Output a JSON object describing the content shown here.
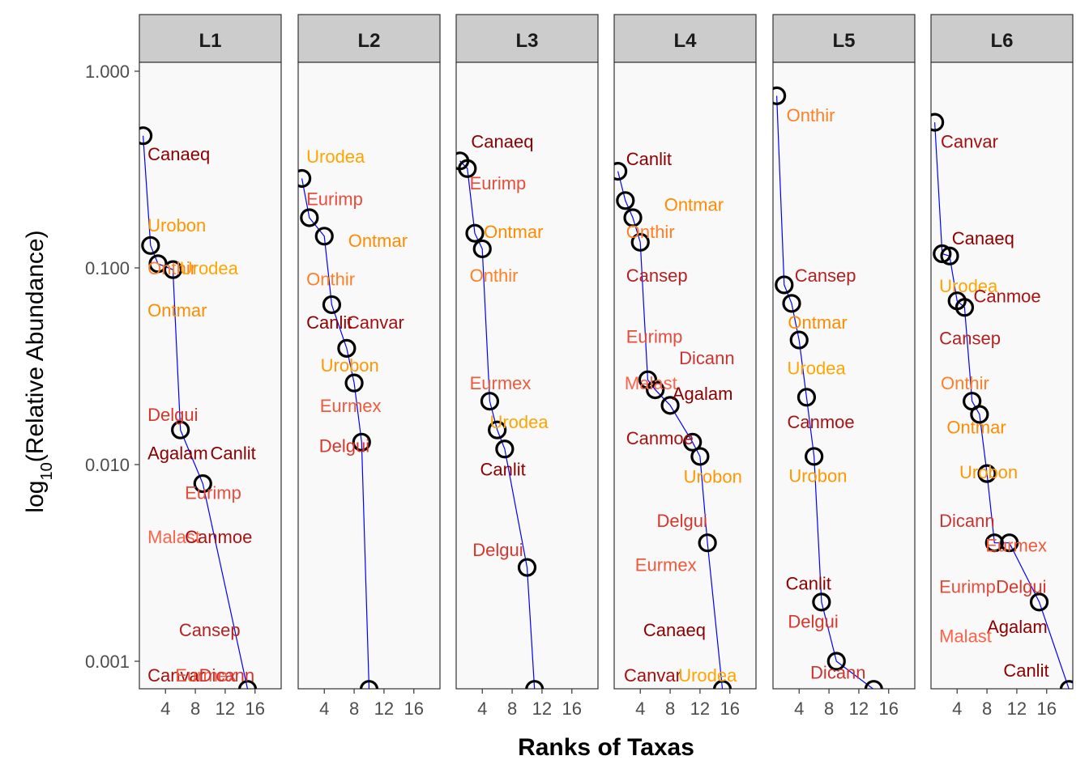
{
  "chart_data": {
    "type": "scatter",
    "xlabel": "Ranks of Taxas",
    "ylabel_prefix": "log",
    "ylabel_subscript": "10",
    "ylabel_suffix": "(Relative Abundance)",
    "y_scale": "log10",
    "ylim": [
      0.00075,
      1.6
    ],
    "xlim": [
      0.5,
      19.5
    ],
    "x_ticks": [
      4,
      8,
      12,
      16
    ],
    "y_ticks": [
      {
        "value": 1,
        "label": "1.000"
      },
      {
        "value": 0.1,
        "label": "0.100"
      },
      {
        "value": 0.01,
        "label": "0.010"
      },
      {
        "value": 0.001,
        "label": "0.001"
      }
    ],
    "colors": {
      "Canaeq": "#8B0000",
      "Canlit": "#8B0000",
      "Canvar": "#A40F0F",
      "Canmoe": "#A81212",
      "Agalam": "#8B0000",
      "Cansep": "#B22222",
      "Dicann": "#CC3333",
      "Delgui": "#D9362B",
      "Eurimp": "#E74C3C",
      "Eurmex": "#F05A3C",
      "Malast": "#FF6347",
      "Onthir": "#FF7F24",
      "Ontmar": "#FF8C00",
      "Urobon": "#FF9800",
      "Urodea": "#FFA500"
    },
    "panels": [
      {
        "label": "L1",
        "points": [
          [
            1,
            0.47
          ],
          [
            2,
            0.13
          ],
          [
            3,
            0.105
          ],
          [
            5,
            0.098
          ],
          [
            6,
            0.015
          ],
          [
            9,
            0.008
          ],
          [
            15,
            0.00072
          ]
        ],
        "labels": [
          {
            "taxon": "Canaeq",
            "x": 1.6,
            "y": 0.38
          },
          {
            "taxon": "Urobon",
            "x": 1.6,
            "y": 0.165
          },
          {
            "taxon": "Onthir",
            "x": 1.6,
            "y": 0.1
          },
          {
            "taxon": "Urodea",
            "x": 5.9,
            "y": 0.1
          },
          {
            "taxon": "Ontmar",
            "x": 1.6,
            "y": 0.061
          },
          {
            "taxon": "Delgui",
            "x": 1.6,
            "y": 0.018
          },
          {
            "taxon": "Agalam",
            "x": 1.6,
            "y": 0.0115
          },
          {
            "taxon": "Canlit",
            "x": 10,
            "y": 0.0115
          },
          {
            "taxon": "Eurimp",
            "x": 6.6,
            "y": 0.0072
          },
          {
            "taxon": "Malast",
            "x": 1.6,
            "y": 0.0043
          },
          {
            "taxon": "Canmoe",
            "x": 6.6,
            "y": 0.0043
          },
          {
            "taxon": "Cansep",
            "x": 5.8,
            "y": 0.00145
          },
          {
            "taxon": "Canvar",
            "x": 1.6,
            "y": 0.00085
          },
          {
            "taxon": "Eurmex",
            "x": 5.3,
            "y": 0.00085
          },
          {
            "taxon": "Dicann",
            "x": 8.5,
            "y": 0.00085
          }
        ]
      },
      {
        "label": "L2",
        "points": [
          [
            1,
            0.285
          ],
          [
            2,
            0.18
          ],
          [
            4,
            0.145
          ],
          [
            5,
            0.065
          ],
          [
            7,
            0.039
          ],
          [
            8,
            0.026
          ],
          [
            9,
            0.013
          ],
          [
            10,
            0.00072
          ]
        ],
        "labels": [
          {
            "taxon": "Urodea",
            "x": 1.6,
            "y": 0.37
          },
          {
            "taxon": "Eurimp",
            "x": 1.6,
            "y": 0.225
          },
          {
            "taxon": "Ontmar",
            "x": 7.2,
            "y": 0.138
          },
          {
            "taxon": "Onthir",
            "x": 1.6,
            "y": 0.088
          },
          {
            "taxon": "Canlit",
            "x": 1.6,
            "y": 0.053
          },
          {
            "taxon": "Canvar",
            "x": 7.0,
            "y": 0.053
          },
          {
            "taxon": "Urobon",
            "x": 3.5,
            "y": 0.032
          },
          {
            "taxon": "Eurmex",
            "x": 3.4,
            "y": 0.02
          },
          {
            "taxon": "Delgui",
            "x": 3.3,
            "y": 0.0125
          }
        ]
      },
      {
        "label": "L3",
        "points": [
          [
            1,
            0.35
          ],
          [
            2,
            0.32
          ],
          [
            3,
            0.15
          ],
          [
            4,
            0.125
          ],
          [
            5,
            0.021
          ],
          [
            6,
            0.015
          ],
          [
            7,
            0.012
          ],
          [
            10,
            0.003
          ],
          [
            11,
            0.00072
          ]
        ],
        "labels": [
          {
            "taxon": "Canaeq",
            "x": 2.5,
            "y": 0.44
          },
          {
            "taxon": "Eurimp",
            "x": 2.3,
            "y": 0.27
          },
          {
            "taxon": "Ontmar",
            "x": 4.2,
            "y": 0.153
          },
          {
            "taxon": "Onthir",
            "x": 2.3,
            "y": 0.092
          },
          {
            "taxon": "Eurmex",
            "x": 2.3,
            "y": 0.026
          },
          {
            "taxon": "Urodea",
            "x": 5.0,
            "y": 0.0165
          },
          {
            "taxon": "Canlit",
            "x": 3.7,
            "y": 0.0095
          },
          {
            "taxon": "Delgui",
            "x": 2.7,
            "y": 0.0037
          }
        ]
      },
      {
        "label": "L4",
        "points": [
          [
            1,
            0.31
          ],
          [
            2,
            0.22
          ],
          [
            3,
            0.18
          ],
          [
            4,
            0.135
          ],
          [
            5,
            0.027
          ],
          [
            6,
            0.024
          ],
          [
            8,
            0.02
          ],
          [
            11,
            0.013
          ],
          [
            12,
            0.011
          ],
          [
            13,
            0.004
          ],
          [
            15,
            0.00072
          ]
        ],
        "labels": [
          {
            "taxon": "Canlit",
            "x": 2.1,
            "y": 0.36
          },
          {
            "taxon": "Ontmar",
            "x": 7.2,
            "y": 0.21
          },
          {
            "taxon": "Onthir",
            "x": 2.1,
            "y": 0.153
          },
          {
            "taxon": "Cansep",
            "x": 2.1,
            "y": 0.092
          },
          {
            "taxon": "Eurimp",
            "x": 2.1,
            "y": 0.045
          },
          {
            "taxon": "Dicann",
            "x": 9.2,
            "y": 0.035
          },
          {
            "taxon": "Malast",
            "x": 1.9,
            "y": 0.026
          },
          {
            "taxon": "Agalam",
            "x": 8.3,
            "y": 0.023
          },
          {
            "taxon": "Canmoe",
            "x": 2.1,
            "y": 0.0137
          },
          {
            "taxon": "Urobon",
            "x": 9.8,
            "y": 0.0087
          },
          {
            "taxon": "Delgui",
            "x": 6.2,
            "y": 0.0052
          },
          {
            "taxon": "Eurmex",
            "x": 3.3,
            "y": 0.0031
          },
          {
            "taxon": "Canaeq",
            "x": 4.4,
            "y": 0.00145
          },
          {
            "taxon": "Canvar",
            "x": 1.8,
            "y": 0.00085
          },
          {
            "taxon": "Urodea",
            "x": 9.1,
            "y": 0.00085
          }
        ]
      },
      {
        "label": "L5",
        "points": [
          [
            1,
            0.75
          ],
          [
            2,
            0.082
          ],
          [
            3,
            0.066
          ],
          [
            4,
            0.043
          ],
          [
            5,
            0.022
          ],
          [
            6,
            0.011
          ],
          [
            7,
            0.002
          ],
          [
            9,
            0.001
          ],
          [
            14,
            0.00072
          ]
        ],
        "labels": [
          {
            "taxon": "Onthir",
            "x": 2.3,
            "y": 0.6
          },
          {
            "taxon": "Cansep",
            "x": 3.4,
            "y": 0.092
          },
          {
            "taxon": "Ontmar",
            "x": 2.5,
            "y": 0.053
          },
          {
            "taxon": "Urodea",
            "x": 2.4,
            "y": 0.031
          },
          {
            "taxon": "Canmoe",
            "x": 2.4,
            "y": 0.0165
          },
          {
            "taxon": "Urobon",
            "x": 2.6,
            "y": 0.0088
          },
          {
            "taxon": "Canlit",
            "x": 2.2,
            "y": 0.0025
          },
          {
            "taxon": "Delgui",
            "x": 2.5,
            "y": 0.0016
          },
          {
            "taxon": "Dicann",
            "x": 5.5,
            "y": 0.00088
          }
        ]
      },
      {
        "label": "L6",
        "points": [
          [
            1,
            0.55
          ],
          [
            2,
            0.118
          ],
          [
            3,
            0.115
          ],
          [
            4,
            0.068
          ],
          [
            5,
            0.063
          ],
          [
            6,
            0.021
          ],
          [
            7,
            0.018
          ],
          [
            8,
            0.009
          ],
          [
            9,
            0.004
          ],
          [
            11,
            0.004
          ],
          [
            15,
            0.002
          ],
          [
            19,
            0.00072
          ]
        ],
        "labels": [
          {
            "taxon": "Canvar",
            "x": 1.8,
            "y": 0.44
          },
          {
            "taxon": "Canaeq",
            "x": 3.3,
            "y": 0.142
          },
          {
            "taxon": "Urodea",
            "x": 1.6,
            "y": 0.081
          },
          {
            "taxon": "Canmoe",
            "x": 6.2,
            "y": 0.072
          },
          {
            "taxon": "Cansep",
            "x": 1.6,
            "y": 0.044
          },
          {
            "taxon": "Onthir",
            "x": 1.8,
            "y": 0.026
          },
          {
            "taxon": "Ontmar",
            "x": 2.6,
            "y": 0.0155
          },
          {
            "taxon": "Urobon",
            "x": 4.3,
            "y": 0.0092
          },
          {
            "taxon": "Dicann",
            "x": 1.6,
            "y": 0.0052
          },
          {
            "taxon": "Eurmex",
            "x": 7.8,
            "y": 0.0039
          },
          {
            "taxon": "Eurimp",
            "x": 1.6,
            "y": 0.0024
          },
          {
            "taxon": "Delgui",
            "x": 9.2,
            "y": 0.0024
          },
          {
            "taxon": "Agalam",
            "x": 8.0,
            "y": 0.0015
          },
          {
            "taxon": "Malast",
            "x": 1.6,
            "y": 0.00135
          },
          {
            "taxon": "Canlit",
            "x": 10.2,
            "y": 0.0009
          }
        ]
      }
    ]
  }
}
